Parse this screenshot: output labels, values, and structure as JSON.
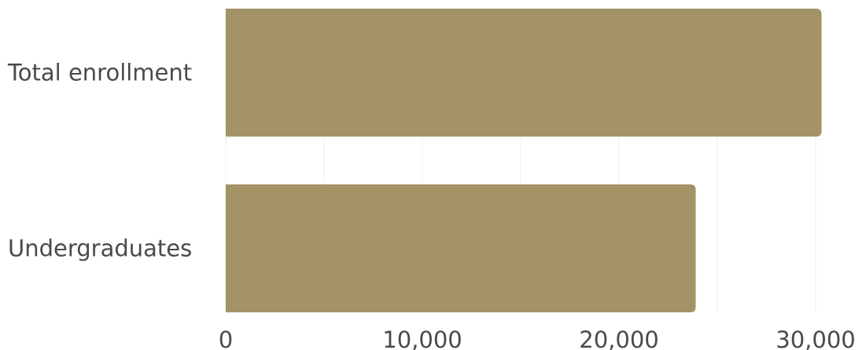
{
  "chart_data": {
    "type": "bar",
    "orientation": "horizontal",
    "categories": [
      "Total enrollment",
      "Undergraduates"
    ],
    "values": [
      30300,
      23900
    ],
    "xlim": [
      0,
      30000
    ],
    "x_ticks": [
      0,
      10000,
      20000,
      30000
    ],
    "x_tick_labels": [
      "0",
      "10,000",
      "20,000",
      "30,000"
    ],
    "title": "",
    "xlabel": "",
    "ylabel": "",
    "grid": true,
    "legend": "none",
    "bar_color": "#a39366"
  }
}
